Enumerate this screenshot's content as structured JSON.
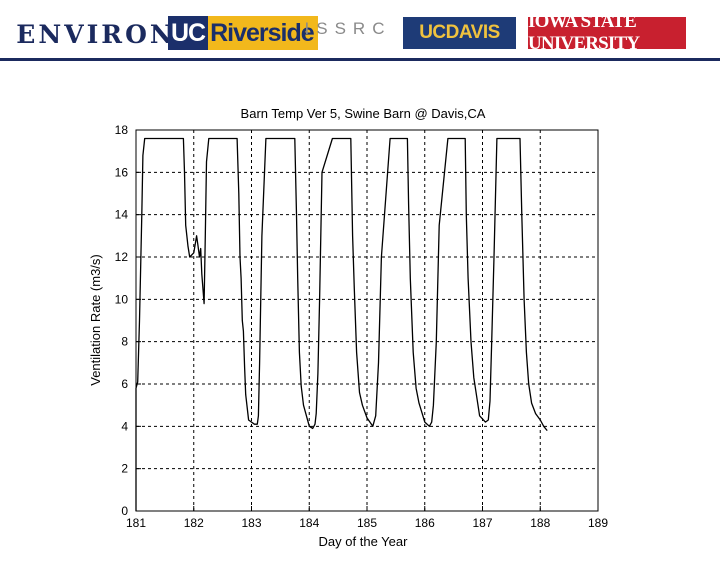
{
  "logos": {
    "environ": "ENVIRON",
    "ucr_uc": "UC",
    "ucr_rest": "Riverside",
    "issrc": "ISSRC",
    "ucdavis": "UCDAVIS",
    "isu": "IOWA STATE UNIVERSITY"
  },
  "colors": {
    "header_rule": "#1b2a5e",
    "line": "#000000",
    "grid": "#000000"
  },
  "chart_data": {
    "type": "line",
    "title": "Barn Temp Ver 5, Swine Barn @ Davis,CA",
    "xlabel": "Day of the Year",
    "ylabel": "Ventilation Rate (m3/s)",
    "xlim": [
      181,
      189
    ],
    "ylim": [
      0,
      18
    ],
    "xticks": [
      181,
      182,
      183,
      184,
      185,
      186,
      187,
      188,
      189
    ],
    "yticks": [
      0,
      2,
      4,
      6,
      8,
      10,
      12,
      14,
      16,
      18
    ],
    "grid": "dashed",
    "series": [
      {
        "x": [
          181.0,
          181.0,
          181.03,
          181.06,
          181.1,
          181.12,
          181.15,
          181.2,
          181.5,
          181.82,
          181.84,
          181.86,
          181.9,
          181.93,
          182.0,
          182.05,
          182.07,
          182.1,
          182.12,
          182.14,
          182.18,
          182.2,
          182.22,
          182.26,
          182.3,
          182.5,
          182.75,
          182.78,
          182.8,
          182.82,
          182.84,
          182.86,
          182.88,
          182.9,
          182.95,
          183.05,
          183.1,
          183.12,
          183.14,
          183.18,
          183.25,
          183.5,
          183.75,
          183.78,
          183.8,
          183.83,
          183.86,
          183.9,
          184.0,
          184.06,
          184.1,
          184.12,
          184.15,
          184.18,
          184.22,
          184.4,
          184.72,
          184.75,
          184.78,
          184.82,
          184.87,
          184.92,
          185.0,
          185.1,
          185.15,
          185.2,
          185.25,
          185.4,
          185.7,
          185.72,
          185.75,
          185.8,
          185.85,
          185.9,
          186.0,
          186.08,
          186.12,
          186.15,
          186.2,
          186.25,
          186.4,
          186.7,
          186.72,
          186.75,
          186.8,
          186.85,
          186.9,
          186.95,
          187.05,
          187.1,
          187.13,
          187.16,
          187.2,
          187.25,
          187.4,
          187.65,
          187.68,
          187.72,
          187.76,
          187.8,
          187.85,
          187.92,
          188.0,
          188.06,
          188.12
        ],
        "values": [
          0,
          5.8,
          6.1,
          9.0,
          14.0,
          16.8,
          17.6,
          17.6,
          17.6,
          17.6,
          16.0,
          13.5,
          12.5,
          12.0,
          12.2,
          13.0,
          12.6,
          12.0,
          12.4,
          11.2,
          9.8,
          13.0,
          16.5,
          17.6,
          17.6,
          17.6,
          17.6,
          15.0,
          12.0,
          11.0,
          9.0,
          8.5,
          6.8,
          5.5,
          4.3,
          4.1,
          4.1,
          4.5,
          7.0,
          13.0,
          17.6,
          17.6,
          17.6,
          14.0,
          11.0,
          7.5,
          5.9,
          5.0,
          4.0,
          3.9,
          4.1,
          4.6,
          6.5,
          10.0,
          16.0,
          17.6,
          17.6,
          13.0,
          10.5,
          7.5,
          5.6,
          5.0,
          4.4,
          4.0,
          4.5,
          7.0,
          12.0,
          17.6,
          17.6,
          14.5,
          11.0,
          7.5,
          5.8,
          5.1,
          4.2,
          4.0,
          4.2,
          5.0,
          8.0,
          13.5,
          17.6,
          17.6,
          14.0,
          11.0,
          8.0,
          6.3,
          5.4,
          4.5,
          4.2,
          4.3,
          5.2,
          8.0,
          12.0,
          17.6,
          17.6,
          17.6,
          14.0,
          10.0,
          7.5,
          6.0,
          5.1,
          4.6,
          4.3,
          4.0,
          3.8
        ]
      }
    ]
  }
}
